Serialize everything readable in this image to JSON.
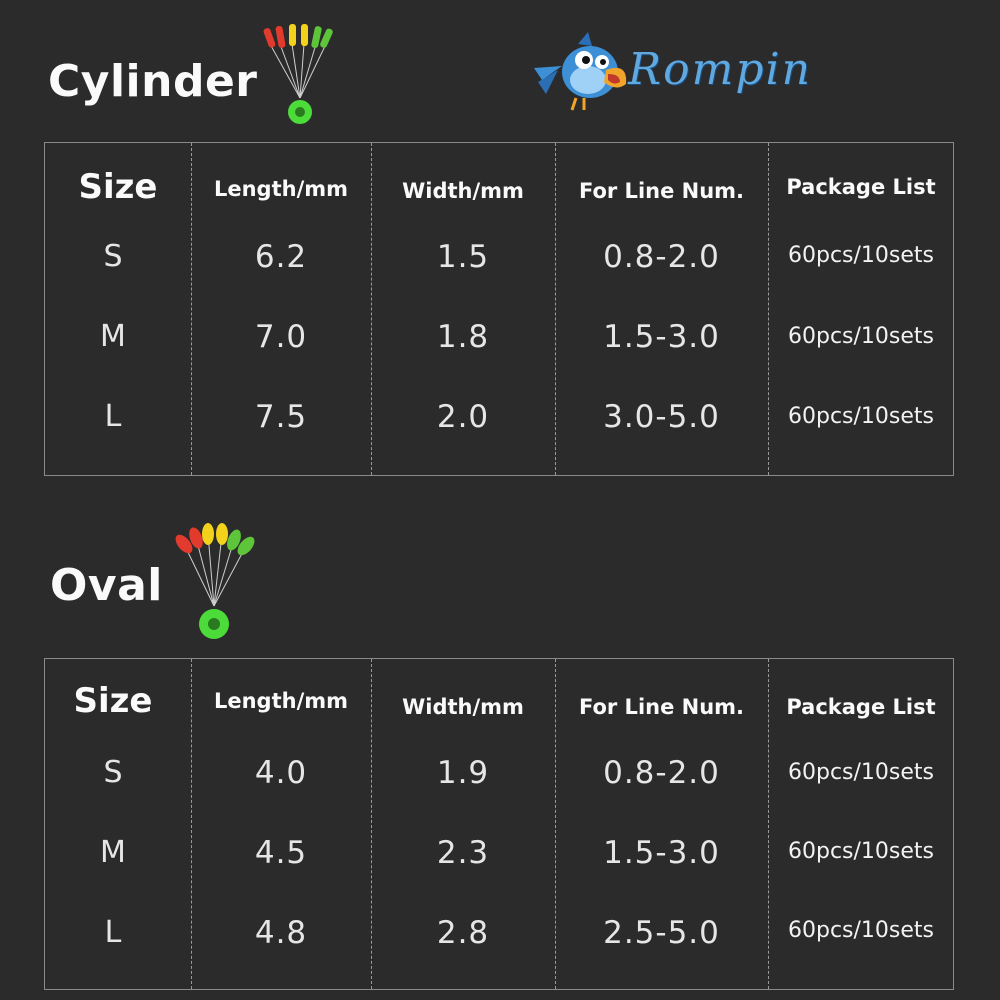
{
  "brand": {
    "name": "Rompin"
  },
  "colors": {
    "background": "#2b2b2b",
    "stopper_red": "#e23b2e",
    "stopper_yellow": "#f2d21b",
    "stopper_green": "#5ec43a",
    "ring_green": "#4cdc3a"
  },
  "headers": {
    "size": "Size",
    "length": "Length/mm",
    "width": "Width/mm",
    "line": "For Line Num.",
    "package": "Package List"
  },
  "cylinder": {
    "title": "Cylinder",
    "rows": [
      {
        "size": "S",
        "length": "6.2",
        "width": "1.5",
        "line": "0.8-2.0",
        "package": "60pcs/10sets"
      },
      {
        "size": "M",
        "length": "7.0",
        "width": "1.8",
        "line": "1.5-3.0",
        "package": "60pcs/10sets"
      },
      {
        "size": "L",
        "length": "7.5",
        "width": "2.0",
        "line": "3.0-5.0",
        "package": "60pcs/10sets"
      }
    ]
  },
  "oval": {
    "title": "Oval",
    "rows": [
      {
        "size": "S",
        "length": "4.0",
        "width": "1.9",
        "line": "0.8-2.0",
        "package": "60pcs/10sets"
      },
      {
        "size": "M",
        "length": "4.5",
        "width": "2.3",
        "line": "1.5-3.0",
        "package": "60pcs/10sets"
      },
      {
        "size": "L",
        "length": "4.8",
        "width": "2.8",
        "line": "2.5-5.0",
        "package": "60pcs/10sets"
      }
    ]
  }
}
